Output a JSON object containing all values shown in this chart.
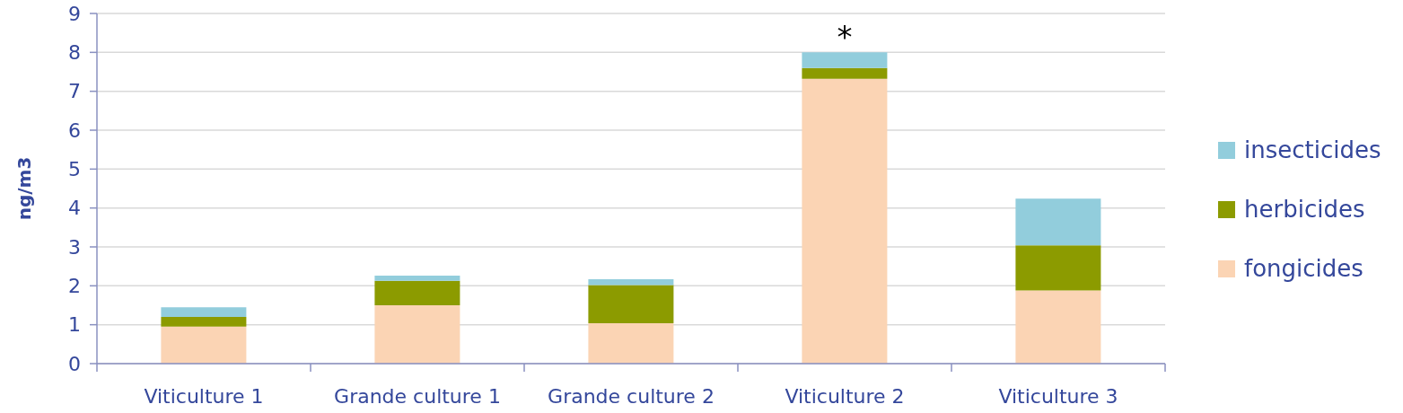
{
  "chart_data": {
    "type": "bar",
    "ylabel": "ng/m3",
    "categories": [
      "Viticulture 1",
      "Grande culture 1",
      "Grande culture 2",
      "Viticulture 2",
      "Viticulture 3"
    ],
    "series": [
      {
        "name": "fongicides",
        "color": "#fbd4b4",
        "values": [
          0.95,
          1.5,
          1.04,
          7.32,
          1.88
        ]
      },
      {
        "name": "herbicides",
        "color": "#8c9b00",
        "values": [
          0.25,
          0.63,
          0.98,
          0.28,
          1.16
        ]
      },
      {
        "name": "insecticides",
        "color": "#92cddc",
        "values": [
          0.25,
          0.13,
          0.15,
          0.4,
          1.2
        ]
      }
    ],
    "stacked": true,
    "ylim": [
      0,
      9
    ],
    "yticks": [
      0,
      1,
      2,
      3,
      4,
      5,
      6,
      7,
      8,
      9
    ],
    "grid": "y",
    "legend": "right",
    "annotations": [
      {
        "text": "*",
        "x": "Viticulture 2",
        "y": 8.0
      }
    ]
  }
}
